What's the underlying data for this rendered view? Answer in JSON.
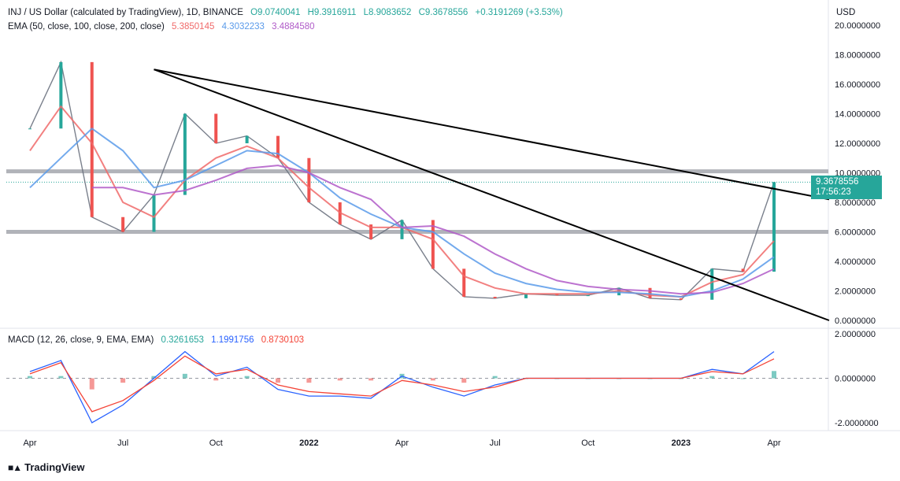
{
  "header": {
    "symbol": "INJ / US Dollar (calculated by TradingView), 1D, BINANCE",
    "open": "O9.0740041",
    "high": "H9.3916911",
    "low": "L8.9083652",
    "close": "C9.3678556",
    "change": "+0.3191269 (+3.53%)",
    "ema_label": "EMA (50, close, 100, close, 200, close)",
    "ema50": "5.3850145",
    "ema100": "4.3032233",
    "ema200": "3.4884580",
    "macd_label": "MACD (12, 26, close, 9, EMA, EMA)",
    "macd_hist": "0.3261653",
    "macd_line": "1.1991756",
    "macd_signal": "0.8730103"
  },
  "axis": {
    "currency": "USD",
    "price_ticks": [
      "20.0000000",
      "18.0000000",
      "16.0000000",
      "14.0000000",
      "12.0000000",
      "10.0000000",
      "8.0000000",
      "6.0000000",
      "4.0000000",
      "2.0000000",
      "0.0000000"
    ],
    "macd_ticks": [
      "2.0000000",
      "0.0000000",
      "-2.0000000"
    ],
    "time_ticks": [
      "Apr",
      "Jul",
      "Oct",
      "2022",
      "Apr",
      "Jul",
      "Oct",
      "2023",
      "Apr"
    ]
  },
  "badge": {
    "price": "9.3678556",
    "countdown": "17:56:23"
  },
  "branding": {
    "name": "TradingView"
  },
  "colors": {
    "ema50": "#f06a6a",
    "ema100": "#5b9bea",
    "ema200": "#b05bc8",
    "up": "#26a69a",
    "down": "#ef5350",
    "macd": "#2962ff",
    "signal": "#f44336"
  },
  "chart_data": {
    "type": "line",
    "title": "INJ / US Dollar (calculated by TradingView), 1D, BINANCE",
    "ylim": [
      0,
      20
    ],
    "x": [
      "2021-04",
      "2021-05",
      "2021-06",
      "2021-07",
      "2021-08",
      "2021-09",
      "2021-10",
      "2021-11",
      "2021-12",
      "2022-01",
      "2022-02",
      "2022-03",
      "2022-04",
      "2022-05",
      "2022-06",
      "2022-07",
      "2022-08",
      "2022-09",
      "2022-10",
      "2022-11",
      "2022-12",
      "2023-01",
      "2023-02",
      "2023-03",
      "2023-04"
    ],
    "series": [
      {
        "name": "INJ",
        "values": [
          13.0,
          17.5,
          7.0,
          6.0,
          8.5,
          14.0,
          12.0,
          12.5,
          11.0,
          8.0,
          6.5,
          5.5,
          6.8,
          3.5,
          1.6,
          1.5,
          1.8,
          1.7,
          1.7,
          2.2,
          1.5,
          1.4,
          3.5,
          3.3,
          9.37
        ]
      },
      {
        "name": "EMA 50",
        "values": [
          11.5,
          14.5,
          12.0,
          8.0,
          7.0,
          9.5,
          11.0,
          11.8,
          11.0,
          9.0,
          7.3,
          6.3,
          6.3,
          5.5,
          3.0,
          2.2,
          1.8,
          1.8,
          1.8,
          2.0,
          1.7,
          1.6,
          2.6,
          3.1,
          5.385
        ]
      },
      {
        "name": "EMA 100",
        "values": [
          9.0,
          11.0,
          13.0,
          11.5,
          9.0,
          9.5,
          10.5,
          11.5,
          11.3,
          10.0,
          8.3,
          7.2,
          6.3,
          6.0,
          4.5,
          3.2,
          2.5,
          2.1,
          1.9,
          1.9,
          1.8,
          1.6,
          2.0,
          2.8,
          4.303
        ]
      },
      {
        "name": "EMA 200",
        "values": [
          null,
          null,
          9.0,
          9.0,
          8.5,
          8.8,
          9.5,
          10.3,
          10.5,
          10.0,
          9.0,
          8.2,
          6.3,
          6.4,
          5.7,
          4.5,
          3.5,
          2.7,
          2.3,
          2.1,
          2.0,
          1.8,
          1.9,
          2.5,
          3.488
        ]
      },
      {
        "name": "MACD",
        "values": [
          0.3,
          0.8,
          -2.0,
          -1.2,
          0.0,
          1.2,
          0.1,
          0.5,
          -0.5,
          -0.8,
          -0.8,
          -0.9,
          0.1,
          -0.4,
          -0.8,
          -0.3,
          0.0,
          0.0,
          0.0,
          0.0,
          0.0,
          0.0,
          0.4,
          0.2,
          1.199
        ]
      },
      {
        "name": "Signal",
        "values": [
          0.2,
          0.7,
          -1.5,
          -1.0,
          -0.1,
          1.0,
          0.2,
          0.4,
          -0.3,
          -0.6,
          -0.7,
          -0.8,
          -0.1,
          -0.3,
          -0.6,
          -0.4,
          0.0,
          0.0,
          0.0,
          0.0,
          0.0,
          0.0,
          0.3,
          0.2,
          0.873
        ]
      }
    ],
    "horizontal_levels": [
      10.1,
      6.0
    ],
    "trendlines": [
      {
        "from": [
          "2021-08",
          17.0
        ],
        "to": [
          "2023-04",
          8.2
        ]
      },
      {
        "from": [
          "2021-08",
          17.0
        ],
        "to": [
          "2023-04",
          0.0
        ]
      }
    ]
  }
}
